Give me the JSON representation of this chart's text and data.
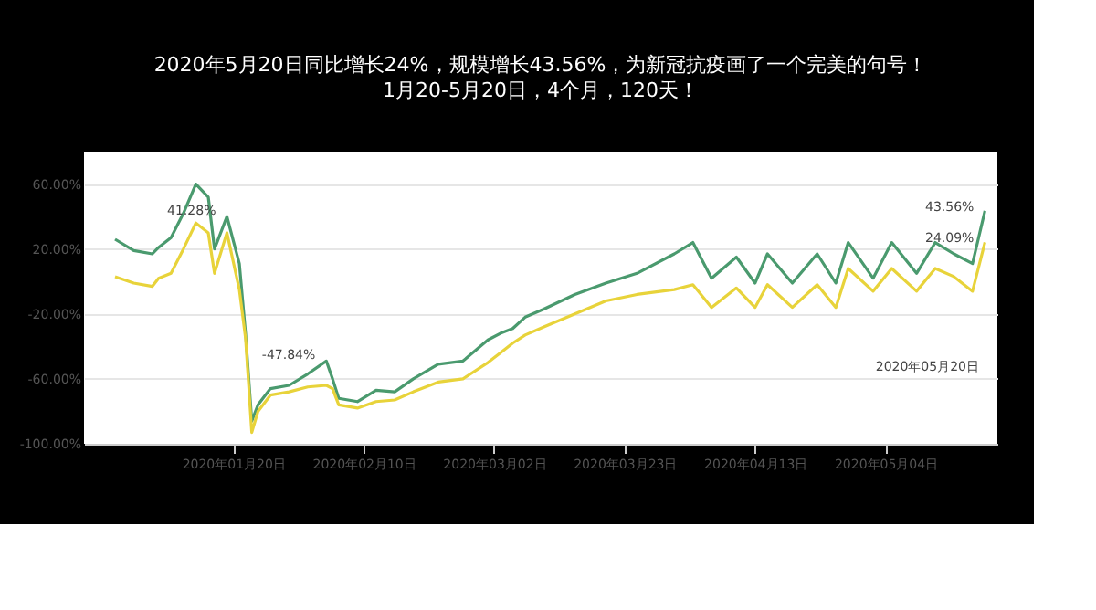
{
  "chart_data": {
    "type": "line",
    "title": "2020年5月20日同比增长24%，规模增长43.56%，为新冠抗疫画了一个完美的句号！",
    "subtitle": "1月20-5月20日，4个月，120天！",
    "x": [
      "2020-01-01",
      "2020-01-04",
      "2020-01-07",
      "2020-01-08",
      "2020-01-10",
      "2020-01-12",
      "2020-01-14",
      "2020-01-16",
      "2020-01-17",
      "2020-01-19",
      "2020-01-21",
      "2020-01-22",
      "2020-01-23",
      "2020-01-24",
      "2020-01-26",
      "2020-01-29",
      "2020-02-01",
      "2020-02-04",
      "2020-02-05",
      "2020-02-06",
      "2020-02-09",
      "2020-02-12",
      "2020-02-15",
      "2020-02-18",
      "2020-02-22",
      "2020-02-26",
      "2020-03-01",
      "2020-03-03",
      "2020-03-05",
      "2020-03-07",
      "2020-03-10",
      "2020-03-15",
      "2020-03-20",
      "2020-03-25",
      "2020-03-31",
      "2020-04-03",
      "2020-04-06",
      "2020-04-10",
      "2020-04-13",
      "2020-04-15",
      "2020-04-19",
      "2020-04-23",
      "2020-04-26",
      "2020-04-28",
      "2020-05-02",
      "2020-05-05",
      "2020-05-09",
      "2020-05-12",
      "2020-05-15",
      "2020-05-18",
      "2020-05-20"
    ],
    "series": [
      {
        "color": "#4a9a6e",
        "values": [
          26,
          19,
          17,
          21,
          27,
          42,
          60,
          52,
          20,
          40,
          11,
          -32,
          -86,
          -76,
          -66,
          -64,
          -57,
          -49,
          -60,
          -72,
          -74,
          -67,
          -68,
          -60,
          -51,
          -49,
          -36,
          -32,
          -29,
          -22,
          -17,
          -8,
          -1,
          5,
          17,
          24,
          2,
          15,
          -1,
          17,
          -1,
          17,
          -1,
          24,
          2,
          24,
          5,
          24,
          17,
          11,
          43.56
        ]
      },
      {
        "color": "#e8d33a",
        "values": [
          3,
          -1,
          -3,
          2,
          5,
          20,
          36,
          30,
          5,
          30,
          -5,
          -35,
          -93,
          -80,
          -70,
          -68,
          -65,
          -64,
          -66,
          -76,
          -78,
          -74,
          -73,
          -68,
          -62,
          -60,
          -50,
          -44,
          -38,
          -33,
          -28,
          -20,
          -12,
          -8,
          -5,
          -2,
          -16,
          -4,
          -16,
          -2,
          -16,
          -2,
          -16,
          8,
          -6,
          8,
          -6,
          8,
          3,
          -6,
          24.09
        ]
      }
    ],
    "xlim": [
      "2019-12-27",
      "2020-05-22"
    ],
    "xticks": [
      {
        "value": "2020-01-20",
        "label": "2020年01月20日"
      },
      {
        "value": "2020-02-10",
        "label": "2020年02月10日"
      },
      {
        "value": "2020-03-02",
        "label": "2020年03月02日"
      },
      {
        "value": "2020-03-23",
        "label": "2020年03月23日"
      },
      {
        "value": "2020-04-13",
        "label": "2020年04月13日"
      },
      {
        "value": "2020-05-04",
        "label": "2020年05月04日"
      }
    ],
    "ylim": [
      -100,
      80
    ],
    "yticks": [
      {
        "value": -100,
        "label": "-100.00%"
      },
      {
        "value": -60,
        "label": "-60.00%"
      },
      {
        "value": -20,
        "label": "-20.00%"
      },
      {
        "value": 20,
        "label": "20.00%"
      },
      {
        "value": 60,
        "label": "60.00%"
      }
    ],
    "grid": "y",
    "marker": "none",
    "line_style": "solid",
    "annotations": [
      {
        "text": "41.28%",
        "x": "2020-01-19",
        "y": 41.28
      },
      {
        "text": "-47.84%",
        "x": "2020-02-04",
        "y": -47.84
      },
      {
        "text": "43.56%",
        "x": "2020-05-20",
        "y": 43.56
      },
      {
        "text": "24.09%",
        "x": "2020-05-20",
        "y": 24.09
      },
      "2020年05月20日"
    ]
  }
}
